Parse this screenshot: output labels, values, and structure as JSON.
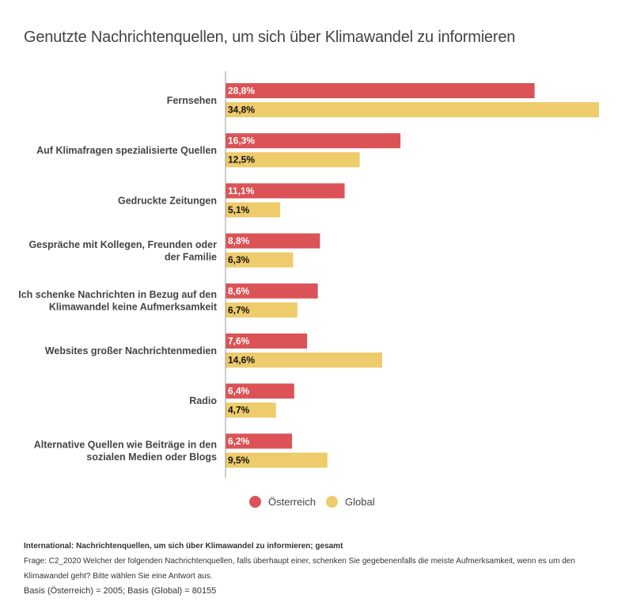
{
  "chart_data": {
    "type": "bar",
    "orientation": "horizontal",
    "title": "Genutzte Nachrichtenquellen, um sich über Klimawandel zu informieren",
    "xlabel": "",
    "ylabel": "",
    "xlim": [
      0,
      35
    ],
    "grid": false,
    "legend_position": "bottom-center",
    "categories": [
      [
        "Fernsehen"
      ],
      [
        "Auf Klimafragen spezialisierte Quellen"
      ],
      [
        "Gedruckte Zeitungen"
      ],
      [
        "Gespräche mit Kollegen, Freunden oder",
        "der Familie"
      ],
      [
        "Ich schenke Nachrichten in Bezug auf den",
        "Klimawandel keine Aufmerksamkeit"
      ],
      [
        "Websites großer Nachrichtenmedien"
      ],
      [
        "Radio"
      ],
      [
        "Alternative Quellen wie Beiträge in den",
        "sozialen Medien oder Blogs"
      ]
    ],
    "series": [
      {
        "name": "Österreich",
        "color": "#db5356",
        "label_color": "#ffffff",
        "values": [
          28.8,
          16.3,
          11.1,
          8.8,
          8.6,
          7.6,
          6.4,
          6.2
        ],
        "labels": [
          "28,8%",
          "16,3%",
          "11,1%",
          "8,8%",
          "8,6%",
          "7,6%",
          "6,4%",
          "6,2%"
        ]
      },
      {
        "name": "Global",
        "color": "#eecb6b",
        "label_color": "#111111",
        "values": [
          34.8,
          12.5,
          5.1,
          6.3,
          6.7,
          14.6,
          4.7,
          9.5
        ],
        "labels": [
          "34,8%",
          "12,5%",
          "5,1%",
          "6,3%",
          "6,7%",
          "14,6%",
          "4,7%",
          "9,5%"
        ]
      }
    ]
  },
  "notes": {
    "line1": "International: Nachrichtenquellen, um sich über Klimawandel zu informieren; gesamt",
    "line2": "Frage: C2_2020 Welcher der folgenden Nachrichtenquellen, falls überhaupt einer, schenken Sie gegebenenfalls die meiste Aufmerksamkeit, wenn es um den Klimawandel geht? Bitte wählen Sie eine Antwort aus.",
    "line3": "Basis (Österreich) = 2005; Basis (Global) = 80155"
  }
}
